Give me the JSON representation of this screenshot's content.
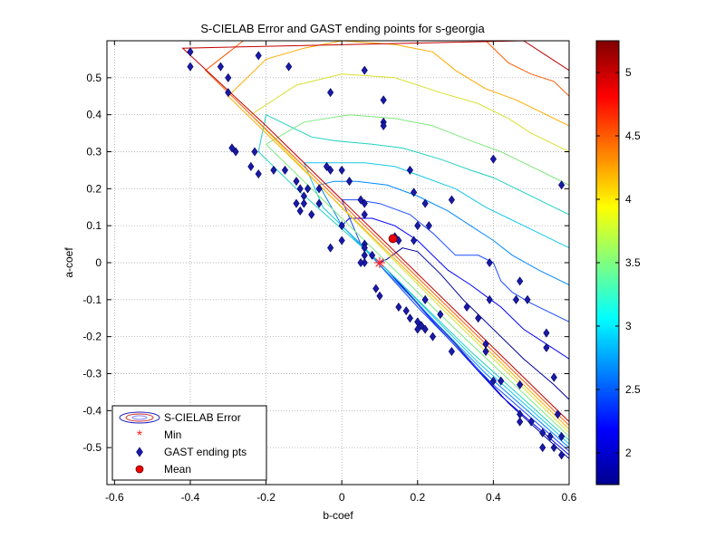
{
  "chart_data": {
    "type": "scatter",
    "title": "S-CIELAB Error and GAST ending points for s-georgia",
    "xlabel": "b-coef",
    "ylabel": "a-coef",
    "xlim": [
      -0.62,
      0.6
    ],
    "ylim": [
      -0.6,
      0.6
    ],
    "xticks": [
      -0.6,
      -0.4,
      -0.2,
      0,
      0.2,
      0.4,
      0.6
    ],
    "xtick_labels": [
      "-0.6",
      "-0.4",
      "-0.2",
      "0",
      "0.2",
      "0.4",
      "0.6"
    ],
    "yticks": [
      0.5,
      0.4,
      0.3,
      0.2,
      0.1,
      0,
      -0.1,
      -0.2,
      -0.3,
      -0.4,
      -0.5
    ],
    "ytick_labels": [
      "0.5",
      "0.4",
      "0.3",
      "0.2",
      "0.1",
      "0",
      "-0.1",
      "-0.2",
      "-0.3",
      "-0.4",
      "-0.5"
    ],
    "grid": true,
    "legend_position": "bottom-left",
    "legend": [
      {
        "label": "S-CIELAB Error",
        "marker": "contour"
      },
      {
        "label": "Min",
        "marker": "asterisk",
        "color": "#ff2020"
      },
      {
        "label": "GAST ending pts",
        "marker": "diamond",
        "color": "#1a1aa6"
      },
      {
        "label": "Mean",
        "marker": "circle",
        "color": "#ee0000"
      }
    ],
    "colorbar": {
      "range": [
        1.75,
        5.25
      ],
      "ticks": [
        2,
        2.5,
        3,
        3.5,
        4,
        4.5,
        5
      ],
      "tick_labels": [
        "2",
        "2.5",
        "3",
        "3.5",
        "4",
        "4.5",
        "5"
      ],
      "colormap": "jet"
    },
    "series": [
      {
        "name": "GAST ending pts",
        "points": [
          [
            -0.4,
            0.57
          ],
          [
            -0.4,
            0.53
          ],
          [
            -0.32,
            0.53
          ],
          [
            -0.3,
            0.5
          ],
          [
            -0.3,
            0.46
          ],
          [
            -0.22,
            0.56
          ],
          [
            -0.14,
            0.53
          ],
          [
            -0.03,
            0.46
          ],
          [
            0.06,
            0.52
          ],
          [
            0.11,
            0.44
          ],
          [
            0.11,
            0.38
          ],
          [
            0.11,
            0.37
          ],
          [
            -0.29,
            0.31
          ],
          [
            -0.28,
            0.3
          ],
          [
            -0.24,
            0.26
          ],
          [
            -0.23,
            0.3
          ],
          [
            -0.22,
            0.24
          ],
          [
            -0.18,
            0.25
          ],
          [
            -0.15,
            0.25
          ],
          [
            -0.12,
            0.22
          ],
          [
            -0.11,
            0.2
          ],
          [
            -0.1,
            0.18
          ],
          [
            -0.1,
            0.16
          ],
          [
            -0.09,
            0.2
          ],
          [
            -0.06,
            0.2
          ],
          [
            -0.06,
            0.16
          ],
          [
            -0.12,
            0.16
          ],
          [
            -0.11,
            0.14
          ],
          [
            -0.08,
            0.13
          ],
          [
            -0.04,
            0.26
          ],
          [
            -0.03,
            0.25
          ],
          [
            0.0,
            0.25
          ],
          [
            0.02,
            0.22
          ],
          [
            0.0,
            0.1
          ],
          [
            0.0,
            0.06
          ],
          [
            0.05,
            0.17
          ],
          [
            0.06,
            0.16
          ],
          [
            0.06,
            0.13
          ],
          [
            0.18,
            0.25
          ],
          [
            0.19,
            0.19
          ],
          [
            0.22,
            0.16
          ],
          [
            0.29,
            0.17
          ],
          [
            0.23,
            0.1
          ],
          [
            0.2,
            0.1
          ],
          [
            0.19,
            0.06
          ],
          [
            0.14,
            0.07
          ],
          [
            0.15,
            0.06
          ],
          [
            0.06,
            0.05
          ],
          [
            0.06,
            0.04
          ],
          [
            0.06,
            0.02
          ],
          [
            0.06,
            0.0
          ],
          [
            0.05,
            0.0
          ],
          [
            0.08,
            0.02
          ],
          [
            -0.03,
            0.04
          ],
          [
            0.09,
            -0.07
          ],
          [
            0.1,
            -0.09
          ],
          [
            0.15,
            -0.12
          ],
          [
            0.17,
            -0.13
          ],
          [
            0.18,
            -0.15
          ],
          [
            0.2,
            -0.16
          ],
          [
            0.22,
            -0.18
          ],
          [
            0.2,
            -0.18
          ],
          [
            0.21,
            -0.17
          ],
          [
            0.22,
            -0.1
          ],
          [
            0.26,
            -0.14
          ],
          [
            0.24,
            -0.2
          ],
          [
            0.29,
            -0.24
          ],
          [
            0.33,
            -0.12
          ],
          [
            0.36,
            -0.15
          ],
          [
            0.39,
            -0.1
          ],
          [
            0.39,
            0.0
          ],
          [
            0.38,
            -0.22
          ],
          [
            0.38,
            -0.24
          ],
          [
            0.4,
            -0.32
          ],
          [
            0.42,
            -0.32
          ],
          [
            0.4,
            0.28
          ],
          [
            0.47,
            -0.05
          ],
          [
            0.46,
            -0.1
          ],
          [
            0.49,
            -0.1
          ],
          [
            0.47,
            -0.33
          ],
          [
            0.47,
            -0.41
          ],
          [
            0.47,
            -0.43
          ],
          [
            0.5,
            -0.43
          ],
          [
            0.53,
            -0.46
          ],
          [
            0.54,
            -0.23
          ],
          [
            0.54,
            -0.19
          ],
          [
            0.56,
            -0.31
          ],
          [
            0.56,
            -0.5
          ],
          [
            0.53,
            -0.5
          ],
          [
            0.55,
            -0.47
          ],
          [
            0.57,
            -0.41
          ],
          [
            0.58,
            -0.47
          ],
          [
            0.58,
            0.21
          ],
          [
            0.58,
            -0.52
          ]
        ]
      },
      {
        "name": "Min",
        "points": [
          [
            0.1,
            0.0
          ]
        ]
      },
      {
        "name": "Mean",
        "points": [
          [
            0.135,
            0.065
          ]
        ]
      }
    ],
    "contours": [
      {
        "level": 1.9,
        "color": "#00009c",
        "points": [
          [
            0.6,
            -0.53
          ],
          [
            0.44,
            -0.38
          ],
          [
            0.3,
            -0.22
          ],
          [
            0.2,
            -0.11
          ],
          [
            0.13,
            -0.03
          ],
          [
            0.1,
            0.0
          ],
          [
            0.12,
            0.01
          ],
          [
            0.16,
            0.04
          ],
          [
            0.2,
            0.03
          ],
          [
            0.26,
            -0.03
          ],
          [
            0.32,
            -0.1
          ],
          [
            0.4,
            -0.18
          ],
          [
            0.48,
            -0.26
          ],
          [
            0.56,
            -0.33
          ],
          [
            0.6,
            -0.37
          ]
        ]
      },
      {
        "level": 2.0,
        "color": "#0000ff",
        "points": [
          [
            0.6,
            -0.52
          ],
          [
            0.42,
            -0.36
          ],
          [
            0.25,
            -0.17
          ],
          [
            0.12,
            -0.02
          ],
          [
            0.0,
            0.1
          ],
          [
            0.02,
            0.12
          ],
          [
            0.08,
            0.12
          ],
          [
            0.14,
            0.1
          ],
          [
            0.2,
            0.06
          ],
          [
            0.28,
            -0.02
          ],
          [
            0.34,
            -0.06
          ],
          [
            0.38,
            -0.09
          ],
          [
            0.42,
            -0.12
          ],
          [
            0.48,
            -0.18
          ],
          [
            0.54,
            -0.22
          ],
          [
            0.6,
            -0.26
          ]
        ]
      },
      {
        "level": 2.2,
        "color": "#1a4bff",
        "points": [
          [
            0.6,
            -0.51
          ],
          [
            0.4,
            -0.33
          ],
          [
            0.2,
            -0.12
          ],
          [
            0.05,
            0.05
          ],
          [
            0.0,
            0.17
          ],
          [
            0.04,
            0.17
          ],
          [
            0.1,
            0.16
          ],
          [
            0.18,
            0.13
          ],
          [
            0.24,
            0.08
          ],
          [
            0.3,
            0.02
          ],
          [
            0.36,
            0.02
          ],
          [
            0.4,
            0.0
          ],
          [
            0.42,
            -0.05
          ],
          [
            0.45,
            -0.08
          ],
          [
            0.5,
            -0.11
          ],
          [
            0.56,
            -0.14
          ],
          [
            0.6,
            -0.16
          ]
        ]
      },
      {
        "level": 2.5,
        "color": "#0088ff",
        "points": [
          [
            0.6,
            -0.5
          ],
          [
            0.38,
            -0.3
          ],
          [
            0.18,
            -0.09
          ],
          [
            0.0,
            0.1
          ],
          [
            -0.06,
            0.21
          ],
          [
            -0.02,
            0.22
          ],
          [
            0.04,
            0.22
          ],
          [
            0.12,
            0.21
          ],
          [
            0.2,
            0.18
          ],
          [
            0.28,
            0.14
          ],
          [
            0.34,
            0.1
          ],
          [
            0.4,
            0.06
          ],
          [
            0.45,
            0.02
          ],
          [
            0.52,
            -0.02
          ],
          [
            0.6,
            -0.06
          ]
        ]
      },
      {
        "level": 2.8,
        "color": "#18c8e8",
        "points": [
          [
            0.6,
            -0.49
          ],
          [
            0.36,
            -0.27
          ],
          [
            0.14,
            -0.04
          ],
          [
            -0.05,
            0.15
          ],
          [
            -0.1,
            0.27
          ],
          [
            -0.04,
            0.27
          ],
          [
            0.06,
            0.27
          ],
          [
            0.14,
            0.26
          ],
          [
            0.22,
            0.23
          ],
          [
            0.3,
            0.2
          ],
          [
            0.38,
            0.15
          ],
          [
            0.44,
            0.12
          ],
          [
            0.52,
            0.08
          ],
          [
            0.6,
            0.04
          ]
        ]
      },
      {
        "level": 3.1,
        "color": "#20d0c0",
        "points": [
          [
            0.6,
            -0.48
          ],
          [
            0.34,
            -0.24
          ],
          [
            0.1,
            0.0
          ],
          [
            -0.12,
            0.2
          ],
          [
            -0.22,
            0.3
          ],
          [
            -0.2,
            0.4
          ],
          [
            -0.14,
            0.37
          ],
          [
            -0.08,
            0.34
          ],
          [
            -0.02,
            0.33
          ],
          [
            0.08,
            0.32
          ],
          [
            0.16,
            0.31
          ],
          [
            0.26,
            0.28
          ],
          [
            0.34,
            0.25
          ],
          [
            0.4,
            0.23
          ],
          [
            0.46,
            0.2
          ],
          [
            0.54,
            0.16
          ],
          [
            0.6,
            0.13
          ]
        ]
      },
      {
        "level": 3.4,
        "color": "#7fe87f",
        "points": [
          [
            0.6,
            -0.47
          ],
          [
            0.3,
            -0.18
          ],
          [
            0.0,
            0.12
          ],
          [
            -0.2,
            0.32
          ],
          [
            -0.1,
            0.38
          ],
          [
            0.02,
            0.4
          ],
          [
            0.14,
            0.39
          ],
          [
            0.24,
            0.37
          ],
          [
            0.34,
            0.33
          ],
          [
            0.42,
            0.3
          ],
          [
            0.48,
            0.27
          ],
          [
            0.54,
            0.24
          ],
          [
            0.6,
            0.21
          ]
        ]
      },
      {
        "level": 3.8,
        "color": "#d8e030",
        "points": [
          [
            0.6,
            -0.46
          ],
          [
            0.26,
            -0.12
          ],
          [
            -0.05,
            0.2
          ],
          [
            -0.24,
            0.4
          ],
          [
            -0.12,
            0.48
          ],
          [
            0.0,
            0.51
          ],
          [
            0.14,
            0.5
          ],
          [
            0.26,
            0.46
          ],
          [
            0.36,
            0.43
          ],
          [
            0.44,
            0.39
          ],
          [
            0.5,
            0.35
          ],
          [
            0.56,
            0.32
          ],
          [
            0.6,
            0.3
          ]
        ]
      },
      {
        "level": 4.2,
        "color": "#ffaa00",
        "points": [
          [
            0.6,
            -0.45
          ],
          [
            0.2,
            -0.05
          ],
          [
            -0.1,
            0.25
          ],
          [
            -0.3,
            0.45
          ],
          [
            -0.2,
            0.55
          ],
          [
            -0.1,
            0.58
          ],
          [
            0.0,
            0.6
          ],
          [
            0.14,
            0.59
          ],
          [
            0.24,
            0.57
          ],
          [
            0.3,
            0.52
          ],
          [
            0.38,
            0.47
          ],
          [
            0.46,
            0.44
          ],
          [
            0.52,
            0.41
          ],
          [
            0.6,
            0.37
          ]
        ]
      },
      {
        "level": 4.6,
        "color": "#ff5a00",
        "points": [
          [
            0.6,
            -0.44
          ],
          [
            0.15,
            0.01
          ],
          [
            -0.15,
            0.31
          ],
          [
            -0.36,
            0.52
          ],
          [
            -0.26,
            0.6
          ],
          [
            0.38,
            0.6
          ],
          [
            0.44,
            0.54
          ],
          [
            0.5,
            0.51
          ],
          [
            0.56,
            0.49
          ],
          [
            0.6,
            0.45
          ]
        ]
      },
      {
        "level": 5.0,
        "color": "#c00000",
        "points": [
          [
            0.6,
            -0.43
          ],
          [
            0.1,
            0.07
          ],
          [
            -0.2,
            0.37
          ],
          [
            -0.42,
            0.58
          ],
          [
            0.48,
            0.6
          ],
          [
            0.54,
            0.56
          ],
          [
            0.6,
            0.52
          ]
        ]
      }
    ]
  }
}
